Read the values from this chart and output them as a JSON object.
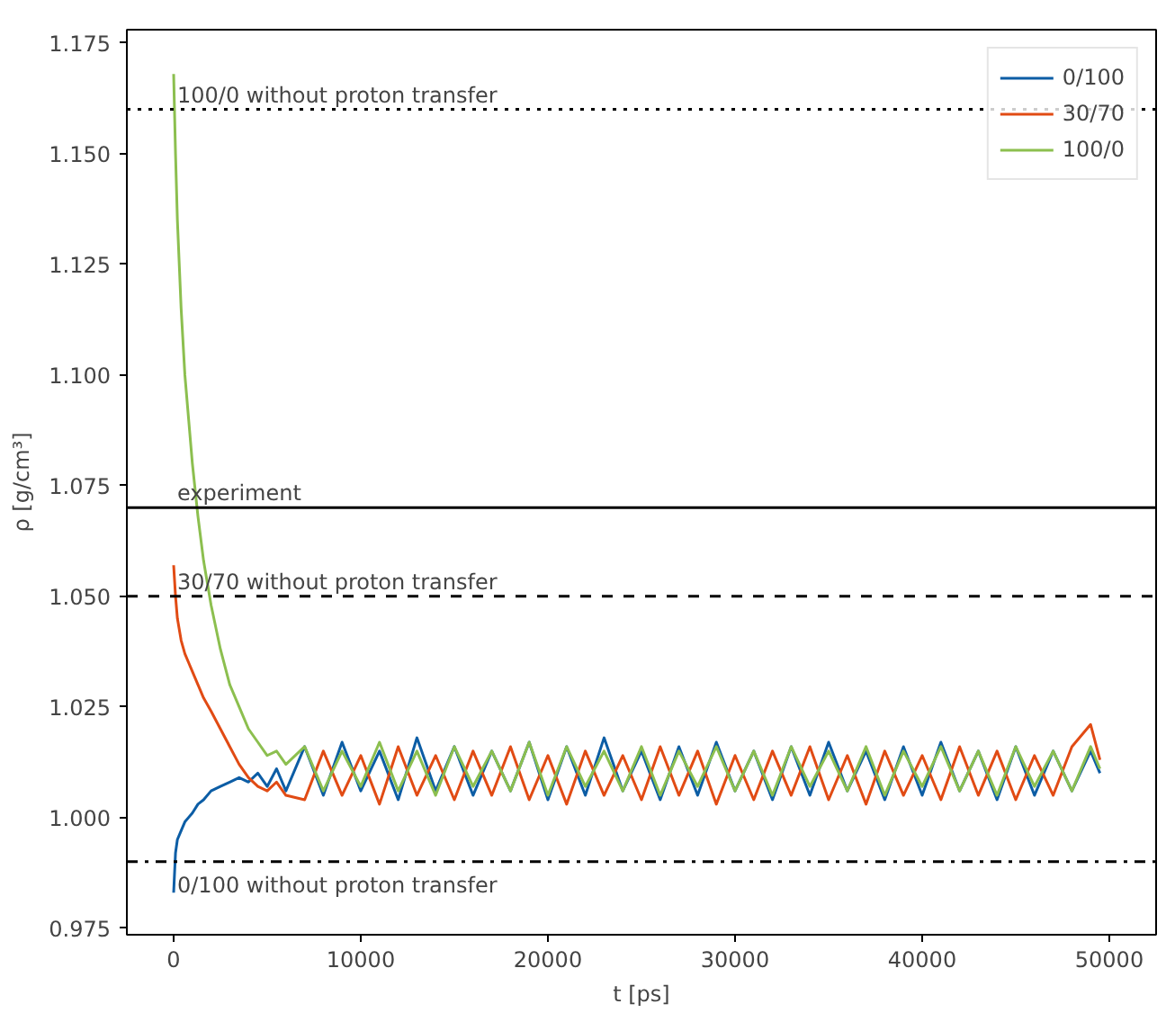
{
  "chart_data": {
    "type": "line",
    "xlabel": "t [ps]",
    "ylabel": "ρ [g/cm³]",
    "xlim": [
      -2500,
      52500
    ],
    "ylim": [
      0.9735,
      1.178
    ],
    "xticks": [
      0,
      10000,
      20000,
      30000,
      40000,
      50000
    ],
    "yticks": [
      {
        "value": 0.975,
        "label": "0.975"
      },
      {
        "value": 1.0,
        "label": "1.000"
      },
      {
        "value": 1.025,
        "label": "1.025"
      },
      {
        "value": 1.05,
        "label": "1.050"
      },
      {
        "value": 1.075,
        "label": "1.075"
      },
      {
        "value": 1.1,
        "label": "1.100"
      },
      {
        "value": 1.125,
        "label": "1.125"
      },
      {
        "value": 1.15,
        "label": "1.150"
      },
      {
        "value": 1.175,
        "label": "1.175"
      }
    ],
    "grid": false,
    "legend": "top right",
    "x": [
      0,
      100,
      200,
      400,
      600,
      800,
      1000,
      1300,
      1600,
      2000,
      2500,
      3000,
      3500,
      4000,
      4500,
      5000,
      5500,
      6000,
      7000,
      8000,
      9000,
      10000,
      11000,
      12000,
      13000,
      14000,
      15000,
      16000,
      17000,
      18000,
      19000,
      20000,
      21000,
      22000,
      23000,
      24000,
      25000,
      26000,
      27000,
      28000,
      29000,
      30000,
      31000,
      32000,
      33000,
      34000,
      35000,
      36000,
      37000,
      38000,
      39000,
      40000,
      41000,
      42000,
      43000,
      44000,
      45000,
      46000,
      47000,
      48000,
      49000,
      49500
    ],
    "series": [
      {
        "name": "0/100",
        "color": "#0c5da5",
        "values": [
          0.983,
          0.992,
          0.995,
          0.997,
          0.999,
          1.0,
          1.001,
          1.003,
          1.004,
          1.006,
          1.007,
          1.008,
          1.009,
          1.008,
          1.01,
          1.007,
          1.011,
          1.006,
          1.016,
          1.005,
          1.017,
          1.006,
          1.015,
          1.004,
          1.018,
          1.006,
          1.016,
          1.005,
          1.015,
          1.006,
          1.017,
          1.004,
          1.016,
          1.005,
          1.018,
          1.006,
          1.015,
          1.004,
          1.016,
          1.005,
          1.017,
          1.006,
          1.015,
          1.004,
          1.016,
          1.005,
          1.017,
          1.006,
          1.015,
          1.004,
          1.016,
          1.005,
          1.017,
          1.006,
          1.015,
          1.004,
          1.016,
          1.005,
          1.015,
          1.006,
          1.015,
          1.01
        ]
      },
      {
        "name": "30/70",
        "color": "#e14b14",
        "values": [
          1.057,
          1.05,
          1.045,
          1.04,
          1.037,
          1.035,
          1.033,
          1.03,
          1.027,
          1.024,
          1.02,
          1.016,
          1.012,
          1.009,
          1.007,
          1.006,
          1.008,
          1.005,
          1.004,
          1.015,
          1.005,
          1.014,
          1.003,
          1.016,
          1.005,
          1.014,
          1.004,
          1.015,
          1.005,
          1.016,
          1.004,
          1.014,
          1.003,
          1.015,
          1.005,
          1.014,
          1.004,
          1.016,
          1.005,
          1.015,
          1.003,
          1.014,
          1.004,
          1.015,
          1.005,
          1.016,
          1.004,
          1.014,
          1.003,
          1.015,
          1.005,
          1.014,
          1.004,
          1.016,
          1.005,
          1.015,
          1.004,
          1.014,
          1.005,
          1.016,
          1.021,
          1.013
        ]
      },
      {
        "name": "100/0",
        "color": "#8cbf4f",
        "values": [
          1.168,
          1.15,
          1.135,
          1.115,
          1.1,
          1.09,
          1.08,
          1.068,
          1.058,
          1.048,
          1.038,
          1.03,
          1.025,
          1.02,
          1.017,
          1.014,
          1.015,
          1.012,
          1.016,
          1.006,
          1.015,
          1.007,
          1.017,
          1.006,
          1.015,
          1.005,
          1.016,
          1.007,
          1.015,
          1.006,
          1.017,
          1.005,
          1.016,
          1.007,
          1.015,
          1.006,
          1.016,
          1.005,
          1.015,
          1.007,
          1.016,
          1.006,
          1.015,
          1.005,
          1.016,
          1.007,
          1.015,
          1.006,
          1.016,
          1.005,
          1.015,
          1.007,
          1.016,
          1.006,
          1.015,
          1.005,
          1.016,
          1.007,
          1.015,
          1.006,
          1.016,
          1.011
        ]
      }
    ],
    "ref_lines": [
      {
        "axis": "y",
        "value": 1.16,
        "label": "100/0 without proton transfer",
        "line_style": "dotted",
        "color": "#000000"
      },
      {
        "axis": "y",
        "value": 1.07,
        "label": "experiment",
        "line_style": "solid",
        "color": "#000000"
      },
      {
        "axis": "y",
        "value": 1.05,
        "label": "30/70 without proton transfer",
        "line_style": "dashed",
        "color": "#000000"
      },
      {
        "axis": "y",
        "value": 0.99,
        "label": "0/100 without proton transfer",
        "line_style": "dashdot",
        "color": "#000000"
      }
    ]
  }
}
